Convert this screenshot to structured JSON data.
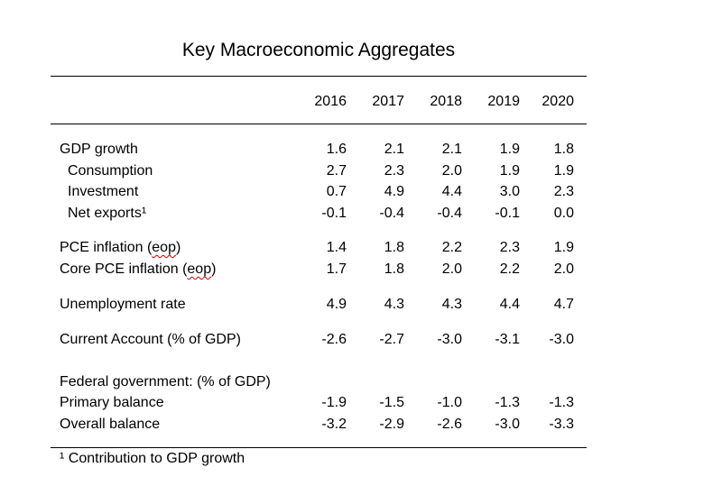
{
  "title": "Key Macroeconomic Aggregates",
  "years": [
    "2016",
    "2017",
    "2018",
    "2019",
    "2020"
  ],
  "rows": [
    {
      "label": "GDP growth",
      "values": [
        "1.6",
        "2.1",
        "2.1",
        "1.9",
        "1.8"
      ]
    },
    {
      "label": "Consumption",
      "values": [
        "2.7",
        "2.3",
        "2.0",
        "1.9",
        "1.9"
      ]
    },
    {
      "label": "Investment",
      "values": [
        "0.7",
        "4.9",
        "4.4",
        "3.0",
        "2.3"
      ]
    },
    {
      "label": "Net exports¹",
      "values": [
        "-0.1",
        "-0.4",
        "-0.4",
        "-0.1",
        "0.0"
      ]
    },
    {
      "label_pre": "PCE inflation (",
      "label_sq": "eop",
      "label_post": ")",
      "values": [
        "1.4",
        "1.8",
        "2.2",
        "2.3",
        "1.9"
      ]
    },
    {
      "label_pre": "Core PCE inflation (",
      "label_sq": "eop",
      "label_post": ")",
      "values": [
        "1.7",
        "1.8",
        "2.0",
        "2.2",
        "2.0"
      ]
    },
    {
      "label": "Unemployment rate",
      "values": [
        "4.9",
        "4.3",
        "4.3",
        "4.4",
        "4.7"
      ]
    },
    {
      "label": "Current Account (% of GDP)",
      "values": [
        "-2.6",
        "-2.7",
        "-3.0",
        "-3.1",
        "-3.0"
      ]
    },
    {
      "label": "Federal government: (% of GDP)"
    },
    {
      "label": "Primary balance",
      "values": [
        "-1.9",
        "-1.5",
        "-1.0",
        "-1.3",
        "-1.3"
      ]
    },
    {
      "label": "Overall balance",
      "values": [
        "-3.2",
        "-2.9",
        "-2.6",
        "-3.0",
        "-3.3"
      ]
    }
  ],
  "footnote": "¹ Contribution to GDP growth"
}
